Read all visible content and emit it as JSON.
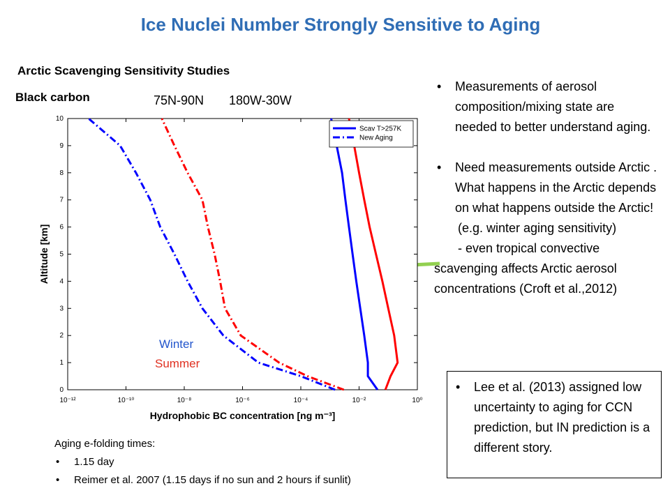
{
  "title": "Ice Nuclei Number Strongly Sensitive to Aging",
  "subtitle": "Arctic Scavenging Sensitivity Studies",
  "chart_data": {
    "type": "line",
    "title": "Black carbon",
    "annotations": [
      "75N-90N",
      "180W-30W",
      "Winter",
      "Summer"
    ],
    "xlabel": "Hydrophobic BC concentration [ng m⁻³]",
    "ylabel": "Altitude [km]",
    "xscale": "log",
    "xlim": [
      1e-12,
      1
    ],
    "xticks": [
      {
        "value": 1e-12,
        "label": "10⁻¹²"
      },
      {
        "value": 1e-10,
        "label": "10⁻¹⁰"
      },
      {
        "value": 1e-08,
        "label": "10⁻⁸"
      },
      {
        "value": 1e-06,
        "label": "10⁻⁶"
      },
      {
        "value": 0.0001,
        "label": "10⁻⁴"
      },
      {
        "value": 0.01,
        "label": "10⁻²"
      },
      {
        "value": 1,
        "label": "10⁰"
      }
    ],
    "ylim": [
      0,
      10
    ],
    "yticks": [
      0,
      1,
      2,
      3,
      4,
      5,
      6,
      7,
      8,
      9,
      10
    ],
    "y": [
      0,
      0.5,
      1,
      2,
      3,
      4,
      5,
      6,
      7,
      8,
      9,
      10
    ],
    "legend": "upper right",
    "series": [
      {
        "name": "Scav T>257K",
        "color": "#0000ff",
        "style": "solid",
        "values": [
          0.043,
          0.02,
          0.02,
          0.015,
          0.011,
          0.008,
          0.006,
          0.0045,
          0.0034,
          0.0026,
          0.0017,
          0.0011
        ]
      },
      {
        "name": "New Aging",
        "color": "#0000ff",
        "style": "dashdot",
        "values": [
          0.0015,
          0.0001,
          3.5e-06,
          2.2e-07,
          4.2e-08,
          1.3e-08,
          4.6e-09,
          1.5e-09,
          6.8e-10,
          2.2e-10,
          6.3e-11,
          5.2e-12
        ]
      },
      {
        "color": "#ff0000",
        "style": "solid",
        "values": [
          0.08,
          0.12,
          0.21,
          0.16,
          0.1,
          0.063,
          0.038,
          0.023,
          0.015,
          0.01,
          0.0068,
          0.0045
        ]
      },
      {
        "color": "#ff0000",
        "style": "dashdot",
        "values": [
          0.003,
          0.00017,
          1.8e-05,
          8.7e-07,
          2.5e-07,
          1.7e-07,
          1.1e-07,
          6.5e-08,
          4.2e-08,
          1.3e-08,
          4.6e-09,
          1.7e-09
        ]
      }
    ]
  },
  "bullets": [
    "Measurements of aerosol composition/mixing state are needed to better understand aging.",
    "Need measurements outside Arctic . What happens in the Arctic depends on what happens outside the Arctic!"
  ],
  "notes": [
    "(e.g. winter aging sensitivity)",
    "- even tropical convective scavenging affects Arctic aerosol concentrations (Croft et al.,2012)"
  ],
  "box": [
    "Lee et al. (2013) assigned low uncertainty to aging for CCN prediction, but IN prediction is a different story."
  ],
  "aging": {
    "heading": "Aging e-folding times:",
    "items": [
      "1.15 day",
      "Reimer et al. 2007 (1.15 days if no sun and 2 hours if sunlit)"
    ]
  }
}
